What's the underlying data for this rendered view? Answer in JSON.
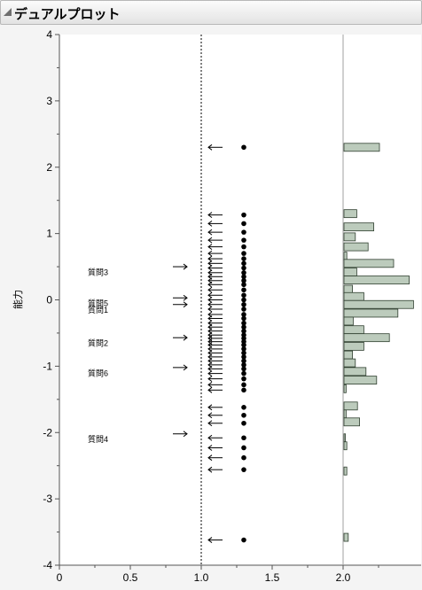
{
  "window": {
    "title": "デュアルプロット"
  },
  "chart_data": {
    "type": "scatter",
    "title": "",
    "xlabel": "",
    "ylabel": "能力",
    "xlim": [
      0,
      2.5
    ],
    "ylim": [
      -4,
      4
    ],
    "x_ticks": [
      0,
      0.5,
      1.0,
      1.5,
      2.0
    ],
    "x_tick_labels": [
      "0",
      "0.5",
      "1.0",
      "1.5",
      "2.0"
    ],
    "y_ticks": [
      4,
      3,
      2,
      1,
      0,
      -1,
      -2,
      -3,
      -4
    ],
    "y_tick_labels": [
      "4",
      "3",
      "2",
      "1",
      "0",
      "-1",
      "-2",
      "-3",
      "-4"
    ],
    "reference_lines": {
      "dashed_x": 1.0,
      "solid_x": 2.0
    },
    "grid": false,
    "items": [
      {
        "label": "質問3",
        "x": 0.3,
        "y": 0.42,
        "arrow_y": 0.5
      },
      {
        "label": "質問5",
        "x": 0.3,
        "y": -0.05,
        "arrow_y": 0.03
      },
      {
        "label": "質問1",
        "x": 0.3,
        "y": -0.15,
        "arrow_y": -0.07
      },
      {
        "label": "質問2",
        "x": 0.3,
        "y": -0.65,
        "arrow_y": -0.57
      },
      {
        "label": "質問6",
        "x": 0.3,
        "y": -1.1,
        "arrow_y": -1.02
      },
      {
        "label": "質問4",
        "x": 0.3,
        "y": -2.1,
        "arrow_y": -2.02
      }
    ],
    "abilities": {
      "x": 1.3,
      "arrow_offset": 0.15,
      "values": [
        2.3,
        1.28,
        1.15,
        1.02,
        0.9,
        0.8,
        0.7,
        0.62,
        0.55,
        0.48,
        0.41,
        0.35,
        0.29,
        0.23,
        0.15,
        0.07,
        0.0,
        -0.07,
        -0.14,
        -0.22,
        -0.28,
        -0.35,
        -0.41,
        -0.47,
        -0.53,
        -0.58,
        -0.63,
        -0.68,
        -0.74,
        -0.8,
        -0.86,
        -0.92,
        -0.98,
        -1.04,
        -1.11,
        -1.19,
        -1.28,
        -1.36,
        -1.62,
        -1.74,
        -1.86,
        -2.08,
        -2.23,
        -2.38,
        -2.56,
        -3.62
      ]
    },
    "histogram": {
      "bins": [
        {
          "y": 2.3,
          "count": 5
        },
        {
          "y": 1.3,
          "count": 1.8
        },
        {
          "y": 1.1,
          "count": 4.2
        },
        {
          "y": 0.95,
          "count": 1.6
        },
        {
          "y": 0.8,
          "count": 3.4
        },
        {
          "y": 0.66,
          "count": 0.4
        },
        {
          "y": 0.55,
          "count": 7
        },
        {
          "y": 0.42,
          "count": 1.8
        },
        {
          "y": 0.3,
          "count": 9.2
        },
        {
          "y": 0.16,
          "count": 1.2
        },
        {
          "y": 0.05,
          "count": 2.8
        },
        {
          "y": -0.07,
          "count": 9.8
        },
        {
          "y": -0.2,
          "count": 7.6
        },
        {
          "y": -0.32,
          "count": 1.3
        },
        {
          "y": -0.45,
          "count": 2.8
        },
        {
          "y": -0.57,
          "count": 6.4
        },
        {
          "y": -0.7,
          "count": 2.8
        },
        {
          "y": -0.83,
          "count": 1.2
        },
        {
          "y": -0.95,
          "count": 1.6
        },
        {
          "y": -1.08,
          "count": 3.1
        },
        {
          "y": -1.21,
          "count": 4.6
        },
        {
          "y": -1.34,
          "count": 0.3
        },
        {
          "y": -1.6,
          "count": 1.9
        },
        {
          "y": -1.72,
          "count": 0.3
        },
        {
          "y": -1.84,
          "count": 2.2
        },
        {
          "y": -2.08,
          "count": 0.2
        },
        {
          "y": -2.2,
          "count": 0.4
        },
        {
          "y": -2.58,
          "count": 0.4
        },
        {
          "y": -3.58,
          "count": 0.6
        }
      ],
      "bin_height": 0.12,
      "max_count": 10,
      "fill": "#bccbbc",
      "stroke": "#2f3f2f"
    }
  }
}
